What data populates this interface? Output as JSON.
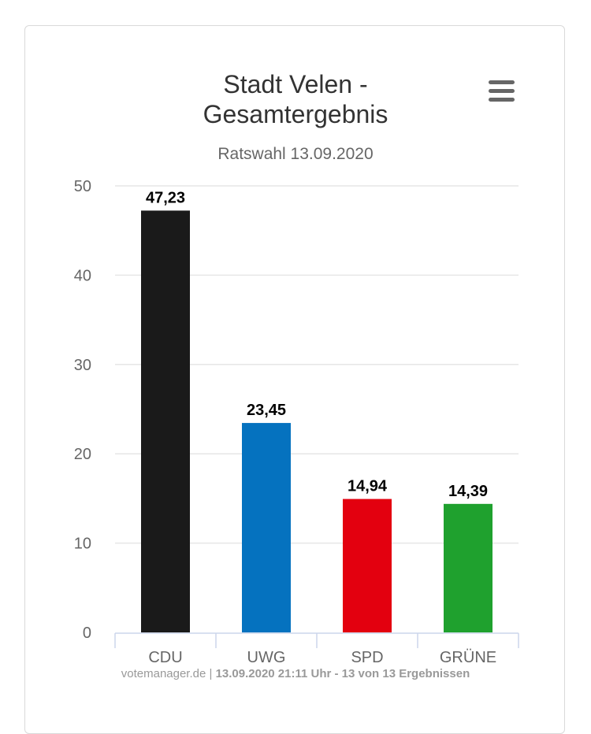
{
  "header": {
    "title_line1": "Stadt Velen -",
    "title_line2": "Gesamtergebnis",
    "subtitle": "Ratswahl 13.09.2020"
  },
  "menu": {
    "icon": "hamburger-menu-icon"
  },
  "footer": {
    "source": "votemanager.de",
    "separator": " | ",
    "info": "13.09.2020 21:11 Uhr - 13 von 13 Ergebnissen"
  },
  "chart_data": {
    "type": "bar",
    "title": "Stadt Velen - Gesamtergebnis",
    "subtitle": "Ratswahl 13.09.2020",
    "categories": [
      "CDU",
      "UWG",
      "SPD",
      "GRÜNE"
    ],
    "values": [
      47.23,
      23.45,
      14.94,
      14.39
    ],
    "value_labels": [
      "47,23",
      "23,45",
      "14,94",
      "14,39"
    ],
    "colors": [
      "#1a1a1a",
      "#0572bf",
      "#e3000f",
      "#1fa12e"
    ],
    "ylim": [
      0,
      50
    ],
    "yticks": [
      0,
      10,
      20,
      30,
      40,
      50
    ],
    "grid": true,
    "legend": "none"
  }
}
